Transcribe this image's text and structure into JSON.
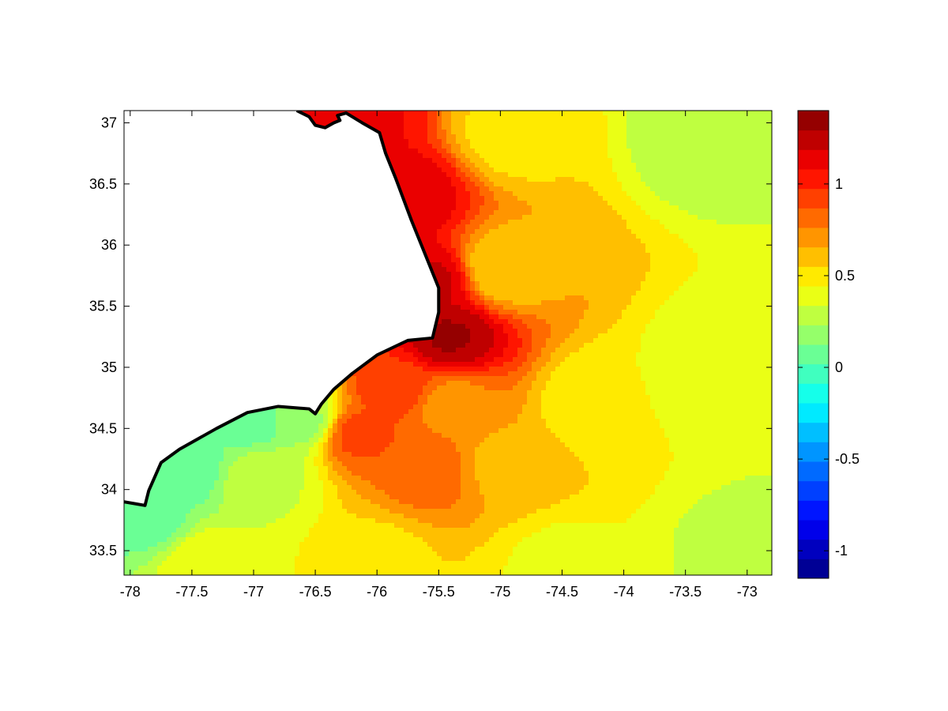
{
  "chart_data": {
    "type": "heatmap",
    "title": "",
    "xlabel": "",
    "ylabel": "",
    "xlim": [
      -78.05,
      -72.8
    ],
    "ylim": [
      33.3,
      37.1
    ],
    "xticks": [
      -78,
      -77.5,
      -77,
      -76.5,
      -76,
      -75.5,
      -75,
      -74.5,
      -74,
      -73.5,
      -73
    ],
    "xtick_labels": [
      "-78",
      "-77.5",
      "-77",
      "-76.5",
      "-76",
      "-75.5",
      "-75",
      "-74.5",
      "-74",
      "-73.5",
      "-73"
    ],
    "yticks": [
      33.5,
      34,
      34.5,
      35,
      35.5,
      36,
      36.5,
      37
    ],
    "ytick_labels": [
      "33.5",
      "34",
      "34.5",
      "35",
      "35.5",
      "36",
      "36.5",
      "37"
    ],
    "colorbar": {
      "colormap": "jet",
      "clim": [
        -1.15,
        1.4
      ],
      "levels": 24,
      "ticks": [
        -1,
        -0.5,
        0,
        0.5,
        1
      ],
      "tick_labels": [
        "-1",
        "-0.5",
        "0",
        "0.5",
        "1"
      ]
    },
    "grid": false,
    "land_color": "#ffffff",
    "coastline_color": "#000000",
    "coastline": [
      [
        -76.65,
        37.1
      ],
      [
        -76.55,
        37.05
      ],
      [
        -76.5,
        36.98
      ],
      [
        -76.42,
        36.96
      ],
      [
        -76.35,
        37.0
      ],
      [
        -76.3,
        37.02
      ],
      [
        -76.32,
        37.06
      ],
      [
        -76.25,
        37.08
      ],
      [
        -76.12,
        37.0
      ],
      [
        -75.98,
        36.92
      ],
      [
        -75.93,
        36.75
      ],
      [
        -75.85,
        36.55
      ],
      [
        -75.72,
        36.2
      ],
      [
        -75.6,
        35.9
      ],
      [
        -75.5,
        35.65
      ],
      [
        -75.5,
        35.45
      ],
      [
        -75.55,
        35.24
      ],
      [
        -75.75,
        35.22
      ],
      [
        -76.0,
        35.1
      ],
      [
        -76.2,
        34.95
      ],
      [
        -76.35,
        34.82
      ],
      [
        -76.45,
        34.7
      ],
      [
        -76.5,
        34.62
      ],
      [
        -76.55,
        34.66
      ],
      [
        -76.8,
        34.68
      ],
      [
        -77.05,
        34.63
      ],
      [
        -77.3,
        34.5
      ],
      [
        -77.6,
        34.33
      ],
      [
        -77.75,
        34.22
      ],
      [
        -77.85,
        33.99
      ],
      [
        -77.88,
        33.87
      ],
      [
        -78.05,
        33.9
      ]
    ],
    "field_sources": [
      {
        "lon": -75.42,
        "lat": 35.25,
        "value": 1.3
      },
      {
        "lon": -75.55,
        "lat": 35.7,
        "value": 1.2
      },
      {
        "lon": -75.75,
        "lat": 36.4,
        "value": 1.15
      },
      {
        "lon": -76.15,
        "lat": 37.0,
        "value": 1.1
      },
      {
        "lon": -75.85,
        "lat": 34.85,
        "value": 0.95
      },
      {
        "lon": -76.15,
        "lat": 34.45,
        "value": 0.9
      },
      {
        "lon": -75.6,
        "lat": 34.15,
        "value": 0.82
      },
      {
        "lon": -75.4,
        "lat": 34.7,
        "value": 0.72
      },
      {
        "lon": -74.95,
        "lat": 34.2,
        "value": 0.62
      },
      {
        "lon": -75.0,
        "lat": 35.8,
        "value": 0.55
      },
      {
        "lon": -74.9,
        "lat": 36.9,
        "value": 0.5
      },
      {
        "lon": -74.2,
        "lat": 34.7,
        "value": 0.45
      },
      {
        "lon": -73.2,
        "lat": 35.0,
        "value": 0.34
      },
      {
        "lon": -73.3,
        "lat": 36.9,
        "value": 0.25
      },
      {
        "lon": -73.0,
        "lat": 33.5,
        "value": 0.3
      },
      {
        "lon": -74.5,
        "lat": 33.4,
        "value": 0.42
      },
      {
        "lon": -76.0,
        "lat": 33.45,
        "value": 0.52
      },
      {
        "lon": -77.4,
        "lat": 33.4,
        "value": 0.42
      },
      {
        "lon": -77.85,
        "lat": 33.75,
        "value": 0.08
      },
      {
        "lon": -77.6,
        "lat": 34.2,
        "value": 0.02
      },
      {
        "lon": -77.0,
        "lat": 34.55,
        "value": 0.08
      },
      {
        "lon": -76.6,
        "lat": 34.56,
        "value": 0.2
      },
      {
        "lon": -76.9,
        "lat": 34.1,
        "value": 0.32
      }
    ]
  }
}
